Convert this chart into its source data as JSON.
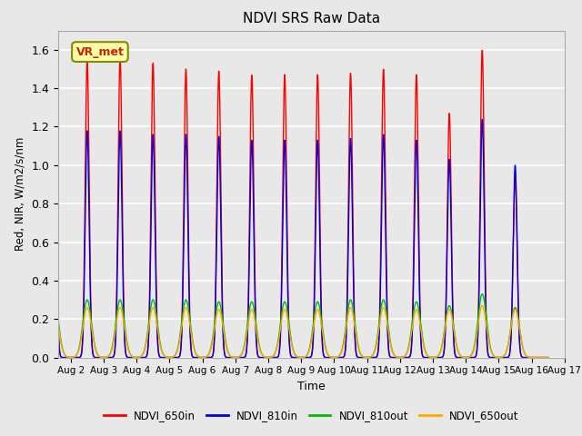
{
  "title": "NDVI SRS Raw Data",
  "ylabel": "Red, NIR, W/m2/s/nm",
  "xlabel": "Time",
  "annotation_text": "VR_met",
  "annotation_color": "#cc2200",
  "annotation_bg": "#ffffaa",
  "annotation_edge": "#888800",
  "ylim": [
    0.0,
    1.7
  ],
  "xlim_start": 1.62,
  "xlim_end": 16.62,
  "xtick_labels": [
    "Aug 2",
    "Aug 3",
    "Aug 4",
    "Aug 5",
    "Aug 6",
    "Aug 7",
    "Aug 8",
    "Aug 9",
    "Aug 10",
    "Aug 11",
    "Aug 12",
    "Aug 13",
    "Aug 14",
    "Aug 15",
    "Aug 16",
    "Aug 17"
  ],
  "xtick_positions": [
    2,
    3,
    4,
    5,
    6,
    7,
    8,
    9,
    10,
    11,
    12,
    13,
    14,
    15,
    16,
    17
  ],
  "n_days": 15,
  "start_day": 2,
  "peaks_650in": [
    1.55,
    1.54,
    1.56,
    1.53,
    1.5,
    1.49,
    1.47,
    1.47,
    1.47,
    1.48,
    1.5,
    1.47,
    1.27,
    1.6,
    0.93
  ],
  "peaks_810in": [
    1.2,
    1.18,
    1.18,
    1.16,
    1.16,
    1.15,
    1.13,
    1.13,
    1.13,
    1.14,
    1.16,
    1.13,
    1.03,
    1.24,
    1.0
  ],
  "peaks_810out": [
    0.3,
    0.3,
    0.3,
    0.3,
    0.3,
    0.29,
    0.29,
    0.29,
    0.29,
    0.3,
    0.3,
    0.29,
    0.27,
    0.33,
    0.26
  ],
  "peaks_650out": [
    0.26,
    0.26,
    0.26,
    0.26,
    0.26,
    0.25,
    0.25,
    0.25,
    0.25,
    0.26,
    0.26,
    0.25,
    0.25,
    0.27,
    0.25
  ],
  "sigma_in": 0.06,
  "sigma_out": 0.13,
  "color_650in": "#ff0000",
  "color_810in": "#0000dd",
  "color_810out": "#00bb00",
  "color_650out": "#ffaa00",
  "background_color": "#e8e8e8",
  "fig_bg_color": "#e8e8e8",
  "grid_color": "#ffffff",
  "linewidth": 1.0,
  "legend_labels": [
    "NDVI_650in",
    "NDVI_810in",
    "NDVI_810out",
    "NDVI_650out"
  ]
}
